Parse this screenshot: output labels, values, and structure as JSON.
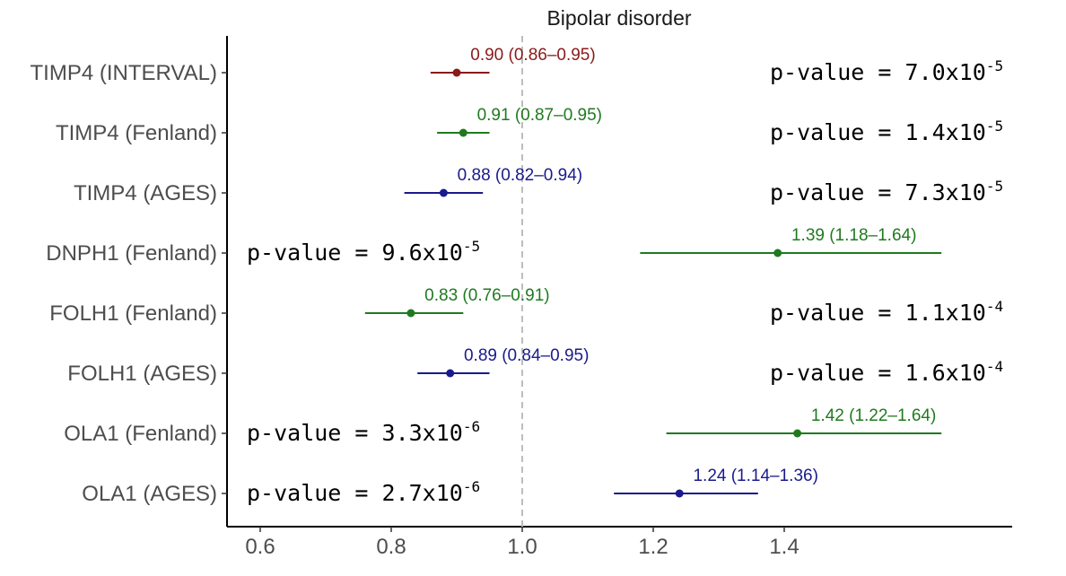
{
  "chart_data": {
    "type": "forest",
    "title": "Bipolar disorder",
    "xlabel": "",
    "ylabel": "",
    "xlim": [
      0.55,
      1.6
    ],
    "x_ticks": [
      "0.6",
      "0.8",
      "1.0",
      "1.2",
      "1.4"
    ],
    "reference_line": 1.0,
    "grid": false,
    "colors": {
      "INTERVAL": "#8b1a1a",
      "Fenland": "#1f7a1f",
      "AGES": "#1a1a8c"
    },
    "rows": [
      {
        "label": "TIMP4 (INTERVAL)",
        "cohort": "INTERVAL",
        "estimate": 0.9,
        "lower": 0.86,
        "upper": 0.95,
        "estimate_text": "0.90 (0.86–0.95)",
        "pvalue_base": "p-value = 7.0x10",
        "pvalue_exp": "-5",
        "pvalue_side": "right"
      },
      {
        "label": "TIMP4 (Fenland)",
        "cohort": "Fenland",
        "estimate": 0.91,
        "lower": 0.87,
        "upper": 0.95,
        "estimate_text": "0.91 (0.87–0.95)",
        "pvalue_base": "p-value = 1.4x10",
        "pvalue_exp": "-5",
        "pvalue_side": "right"
      },
      {
        "label": "TIMP4 (AGES)",
        "cohort": "AGES",
        "estimate": 0.88,
        "lower": 0.82,
        "upper": 0.94,
        "estimate_text": "0.88 (0.82–0.94)",
        "pvalue_base": "p-value = 7.3x10",
        "pvalue_exp": "-5",
        "pvalue_side": "right"
      },
      {
        "label": "DNPH1 (Fenland)",
        "cohort": "Fenland",
        "estimate": 1.39,
        "lower": 1.18,
        "upper": 1.64,
        "estimate_text": "1.39 (1.18–1.64)",
        "pvalue_base": "p-value = 9.6x10",
        "pvalue_exp": "-5",
        "pvalue_side": "left"
      },
      {
        "label": "FOLH1 (Fenland)",
        "cohort": "Fenland",
        "estimate": 0.83,
        "lower": 0.76,
        "upper": 0.91,
        "estimate_text": "0.83 (0.76–0.91)",
        "pvalue_base": "p-value = 1.1x10",
        "pvalue_exp": "-4",
        "pvalue_side": "right"
      },
      {
        "label": "FOLH1 (AGES)",
        "cohort": "AGES",
        "estimate": 0.89,
        "lower": 0.84,
        "upper": 0.95,
        "estimate_text": "0.89 (0.84–0.95)",
        "pvalue_base": "p-value = 1.6x10",
        "pvalue_exp": "-4",
        "pvalue_side": "right"
      },
      {
        "label": "OLA1 (Fenland)",
        "cohort": "Fenland",
        "estimate": 1.42,
        "lower": 1.22,
        "upper": 1.64,
        "estimate_text": "1.42 (1.22–1.64)",
        "pvalue_base": "p-value = 3.3x10",
        "pvalue_exp": "-6",
        "pvalue_side": "left"
      },
      {
        "label": "OLA1 (AGES)",
        "cohort": "AGES",
        "estimate": 1.24,
        "lower": 1.14,
        "upper": 1.36,
        "estimate_text": "1.24 (1.14–1.36)",
        "pvalue_base": "p-value = 2.7x10",
        "pvalue_exp": "-6",
        "pvalue_side": "left"
      }
    ]
  }
}
